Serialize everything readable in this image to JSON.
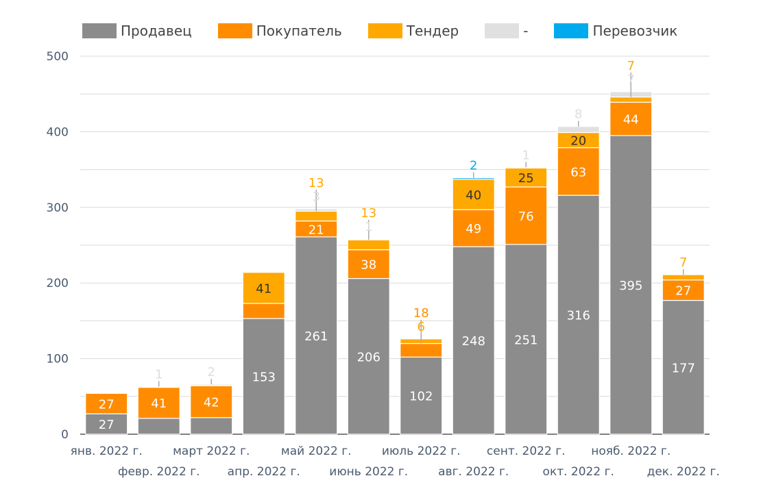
{
  "chart_data": {
    "type": "bar",
    "stacked": true,
    "title": "",
    "xlabel": "",
    "ylabel": "",
    "ylim": [
      0,
      500
    ],
    "y_ticks": [
      0,
      100,
      200,
      300,
      400,
      500
    ],
    "grid": true,
    "legend_position": "top",
    "categories": [
      "янв. 2022 г.",
      "февр. 2022 г.",
      "март 2022 г.",
      "апр. 2022 г.",
      "май 2022 г.",
      "июнь 2022 г.",
      "июль 2022 г.",
      "авг. 2022 г.",
      "сент. 2022 г.",
      "окт. 2022 г.",
      "нояб. 2022 г.",
      "дек. 2022 г."
    ],
    "series": [
      {
        "name": "Продавец",
        "color": "#8c8c8c",
        "values": [
          27,
          21,
          22,
          153,
          261,
          206,
          102,
          248,
          251,
          316,
          395,
          177
        ]
      },
      {
        "name": "Покупатель",
        "color": "#ff8c00",
        "values": [
          27,
          41,
          42,
          20,
          21,
          38,
          18,
          49,
          76,
          63,
          44,
          27
        ]
      },
      {
        "name": "Тендер",
        "color": "#ffa800",
        "values": [
          0,
          0,
          0,
          41,
          13,
          13,
          6,
          40,
          25,
          20,
          7,
          7
        ]
      },
      {
        "name": "-",
        "color": "#e0e0e0",
        "values": [
          0,
          1,
          2,
          0,
          3,
          1,
          0,
          0,
          1,
          8,
          7,
          0
        ]
      },
      {
        "name": "Перевозчик",
        "color": "#00aaee",
        "values": [
          0,
          0,
          0,
          0,
          0,
          0,
          0,
          2,
          0,
          0,
          0,
          0
        ]
      }
    ],
    "data_labels": [
      {
        "category_index": 0,
        "series_index": 0,
        "text": "27"
      },
      {
        "category_index": 0,
        "series_index": 1,
        "text": "27"
      },
      {
        "category_index": 1,
        "series_index": 1,
        "text": "41"
      },
      {
        "category_index": 1,
        "series_index": 3,
        "text": "1"
      },
      {
        "category_index": 2,
        "series_index": 1,
        "text": "42"
      },
      {
        "category_index": 2,
        "series_index": 3,
        "text": "2"
      },
      {
        "category_index": 3,
        "series_index": 0,
        "text": "153"
      },
      {
        "category_index": 3,
        "series_index": 2,
        "text": "41"
      },
      {
        "category_index": 4,
        "series_index": 0,
        "text": "261"
      },
      {
        "category_index": 4,
        "series_index": 1,
        "text": "21"
      },
      {
        "category_index": 4,
        "series_index": 2,
        "text": "13"
      },
      {
        "category_index": 4,
        "series_index": 3,
        "text": "3"
      },
      {
        "category_index": 5,
        "series_index": 0,
        "text": "206"
      },
      {
        "category_index": 5,
        "series_index": 1,
        "text": "38"
      },
      {
        "category_index": 5,
        "series_index": 2,
        "text": "13"
      },
      {
        "category_index": 5,
        "series_index": 3,
        "text": "1"
      },
      {
        "category_index": 6,
        "series_index": 0,
        "text": "102"
      },
      {
        "category_index": 6,
        "series_index": 1,
        "text": "18"
      },
      {
        "category_index": 6,
        "series_index": 2,
        "text": "6"
      },
      {
        "category_index": 7,
        "series_index": 0,
        "text": "248"
      },
      {
        "category_index": 7,
        "series_index": 1,
        "text": "49"
      },
      {
        "category_index": 7,
        "series_index": 2,
        "text": "40"
      },
      {
        "category_index": 7,
        "series_index": 4,
        "text": "2"
      },
      {
        "category_index": 8,
        "series_index": 0,
        "text": "251"
      },
      {
        "category_index": 8,
        "series_index": 1,
        "text": "76"
      },
      {
        "category_index": 8,
        "series_index": 2,
        "text": "25"
      },
      {
        "category_index": 8,
        "series_index": 3,
        "text": "1"
      },
      {
        "category_index": 9,
        "series_index": 0,
        "text": "316"
      },
      {
        "category_index": 9,
        "series_index": 1,
        "text": "63"
      },
      {
        "category_index": 9,
        "series_index": 2,
        "text": "20"
      },
      {
        "category_index": 9,
        "series_index": 3,
        "text": "8"
      },
      {
        "category_index": 10,
        "series_index": 0,
        "text": "395"
      },
      {
        "category_index": 10,
        "series_index": 1,
        "text": "44"
      },
      {
        "category_index": 10,
        "series_index": 2,
        "text": "7"
      },
      {
        "category_index": 10,
        "series_index": 3,
        "text": "7"
      },
      {
        "category_index": 11,
        "series_index": 0,
        "text": "177"
      },
      {
        "category_index": 11,
        "series_index": 1,
        "text": "27"
      },
      {
        "category_index": 11,
        "series_index": 2,
        "text": "7"
      }
    ]
  }
}
